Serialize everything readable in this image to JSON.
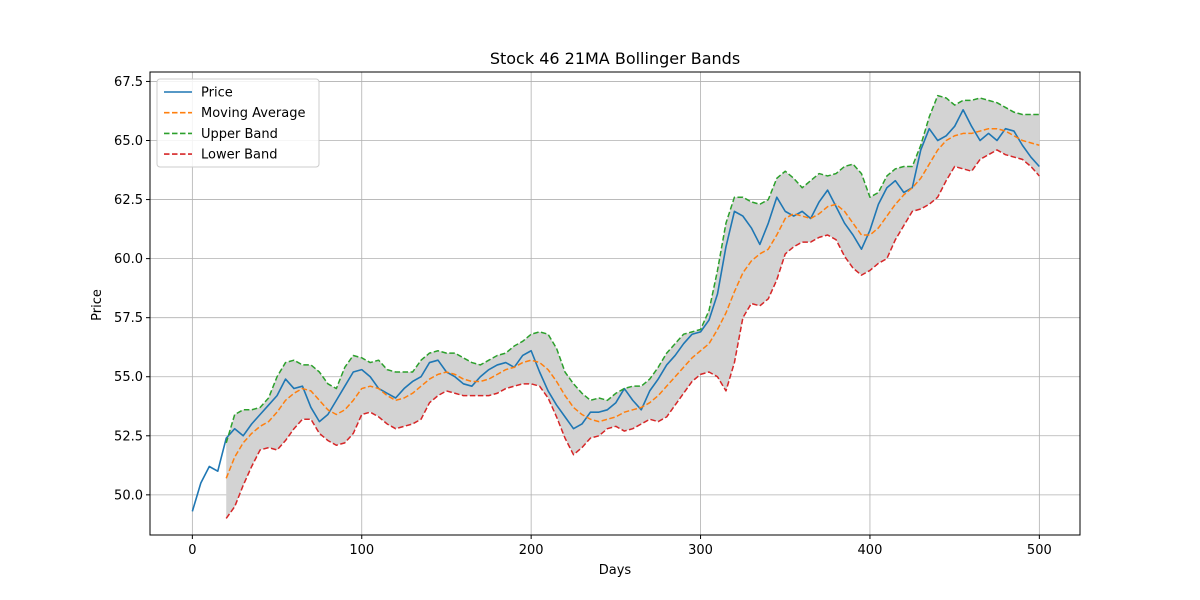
{
  "chart_data": {
    "type": "line",
    "title": "Stock 46 21MA Bollinger Bands",
    "xlabel": "Days",
    "ylabel": "Price",
    "xlim": [
      -25,
      524
    ],
    "ylim": [
      48.3,
      67.9
    ],
    "xticks": [
      0,
      100,
      200,
      300,
      400,
      500
    ],
    "yticks": [
      50.0,
      52.5,
      55.0,
      57.5,
      60.0,
      62.5,
      65.0,
      67.5
    ],
    "xtick_labels": [
      "0",
      "100",
      "200",
      "300",
      "400",
      "500"
    ],
    "ytick_labels": [
      "50.0",
      "52.5",
      "55.0",
      "57.5",
      "60.0",
      "62.5",
      "65.0",
      "67.5"
    ],
    "grid": true,
    "legend_position": "upper-left",
    "band_fill_color": "#d3d3d3",
    "series": [
      {
        "name": "Price",
        "color": "#1f77b4",
        "style": "solid",
        "x": [
          0,
          5,
          10,
          15,
          20,
          25,
          30,
          35,
          40,
          45,
          50,
          55,
          60,
          65,
          70,
          75,
          80,
          85,
          90,
          95,
          100,
          105,
          110,
          115,
          120,
          125,
          130,
          135,
          140,
          145,
          150,
          155,
          160,
          165,
          170,
          175,
          180,
          185,
          190,
          195,
          200,
          205,
          210,
          215,
          220,
          225,
          230,
          235,
          240,
          245,
          250,
          255,
          260,
          265,
          270,
          275,
          280,
          285,
          290,
          295,
          300,
          305,
          310,
          315,
          320,
          325,
          330,
          335,
          340,
          345,
          350,
          355,
          360,
          365,
          370,
          375,
          380,
          385,
          390,
          395,
          400,
          405,
          410,
          415,
          420,
          425,
          430,
          435,
          440,
          445,
          450,
          455,
          460,
          465,
          470,
          475,
          480,
          485,
          490,
          495,
          500
        ],
        "values": [
          49.3,
          50.5,
          51.2,
          51.0,
          52.4,
          52.8,
          52.5,
          53.0,
          53.4,
          53.8,
          54.2,
          54.9,
          54.5,
          54.6,
          53.7,
          53.1,
          53.4,
          54.0,
          54.6,
          55.2,
          55.3,
          55.0,
          54.5,
          54.3,
          54.1,
          54.5,
          54.8,
          55.0,
          55.6,
          55.7,
          55.2,
          55.0,
          54.7,
          54.6,
          55.0,
          55.3,
          55.5,
          55.6,
          55.4,
          55.9,
          56.1,
          55.2,
          54.4,
          53.8,
          53.3,
          52.8,
          53.0,
          53.5,
          53.5,
          53.6,
          53.9,
          54.5,
          54.0,
          53.6,
          54.4,
          54.9,
          55.5,
          55.9,
          56.4,
          56.8,
          56.9,
          57.4,
          58.5,
          60.5,
          62.0,
          61.8,
          61.3,
          60.6,
          61.5,
          62.6,
          62.0,
          61.8,
          62.0,
          61.7,
          62.4,
          62.9,
          62.2,
          61.5,
          61.0,
          60.4,
          61.2,
          62.3,
          63.0,
          63.3,
          62.8,
          63.0,
          64.6,
          65.5,
          65.0,
          65.2,
          65.6,
          66.3,
          65.6,
          65.0,
          65.3,
          65.0,
          65.5,
          65.4,
          64.8,
          64.3,
          63.9
        ]
      },
      {
        "name": "Moving Average",
        "color": "#ff7f0e",
        "style": "dashed",
        "x": [
          20,
          25,
          30,
          35,
          40,
          45,
          50,
          55,
          60,
          65,
          70,
          75,
          80,
          85,
          90,
          95,
          100,
          105,
          110,
          115,
          120,
          125,
          130,
          135,
          140,
          145,
          150,
          155,
          160,
          165,
          170,
          175,
          180,
          185,
          190,
          195,
          200,
          205,
          210,
          215,
          220,
          225,
          230,
          235,
          240,
          245,
          250,
          255,
          260,
          265,
          270,
          275,
          280,
          285,
          290,
          295,
          300,
          305,
          310,
          315,
          320,
          325,
          330,
          335,
          340,
          345,
          350,
          355,
          360,
          365,
          370,
          375,
          380,
          385,
          390,
          395,
          400,
          405,
          410,
          415,
          420,
          425,
          430,
          435,
          440,
          445,
          450,
          455,
          460,
          465,
          470,
          475,
          480,
          485,
          490,
          495,
          500
        ],
        "values": [
          50.7,
          51.6,
          52.2,
          52.6,
          52.9,
          53.1,
          53.5,
          54.0,
          54.3,
          54.5,
          54.4,
          54.0,
          53.6,
          53.4,
          53.6,
          54.0,
          54.5,
          54.6,
          54.5,
          54.2,
          54.0,
          54.1,
          54.3,
          54.6,
          54.9,
          55.1,
          55.2,
          55.1,
          54.9,
          54.8,
          54.8,
          54.9,
          55.1,
          55.3,
          55.4,
          55.6,
          55.7,
          55.6,
          55.3,
          54.8,
          54.2,
          53.7,
          53.4,
          53.2,
          53.1,
          53.2,
          53.3,
          53.5,
          53.6,
          53.7,
          53.9,
          54.2,
          54.6,
          55.0,
          55.4,
          55.8,
          56.1,
          56.4,
          57.0,
          57.7,
          58.6,
          59.4,
          59.9,
          60.2,
          60.4,
          61.0,
          61.7,
          61.9,
          61.8,
          61.7,
          61.9,
          62.2,
          62.3,
          62.0,
          61.5,
          61.0,
          61.0,
          61.3,
          61.8,
          62.3,
          62.7,
          63.0,
          63.4,
          64.0,
          64.6,
          65.0,
          65.2,
          65.3,
          65.3,
          65.4,
          65.5,
          65.5,
          65.4,
          65.2,
          65.0,
          64.9,
          64.8
        ]
      },
      {
        "name": "Upper Band",
        "color": "#2ca02c",
        "style": "dashed",
        "x": [
          20,
          25,
          30,
          35,
          40,
          45,
          50,
          55,
          60,
          65,
          70,
          75,
          80,
          85,
          90,
          95,
          100,
          105,
          110,
          115,
          120,
          125,
          130,
          135,
          140,
          145,
          150,
          155,
          160,
          165,
          170,
          175,
          180,
          185,
          190,
          195,
          200,
          205,
          210,
          215,
          220,
          225,
          230,
          235,
          240,
          245,
          250,
          255,
          260,
          265,
          270,
          275,
          280,
          285,
          290,
          295,
          300,
          305,
          310,
          315,
          320,
          325,
          330,
          335,
          340,
          345,
          350,
          355,
          360,
          365,
          370,
          375,
          380,
          385,
          390,
          395,
          400,
          405,
          410,
          415,
          420,
          425,
          430,
          435,
          440,
          445,
          450,
          455,
          460,
          465,
          470,
          475,
          480,
          485,
          490,
          495,
          500
        ],
        "values": [
          52.2,
          53.4,
          53.6,
          53.6,
          53.7,
          54.1,
          55.0,
          55.6,
          55.7,
          55.5,
          55.5,
          55.2,
          54.7,
          54.5,
          55.4,
          55.9,
          55.8,
          55.6,
          55.7,
          55.3,
          55.2,
          55.2,
          55.2,
          55.7,
          56.0,
          56.1,
          56.0,
          56.0,
          55.8,
          55.6,
          55.5,
          55.7,
          55.9,
          56.0,
          56.3,
          56.5,
          56.8,
          56.9,
          56.8,
          56.2,
          55.2,
          54.7,
          54.3,
          54.0,
          54.1,
          54.0,
          54.3,
          54.5,
          54.6,
          54.6,
          54.9,
          55.4,
          56.0,
          56.4,
          56.8,
          56.9,
          57.0,
          57.8,
          59.5,
          61.5,
          62.6,
          62.6,
          62.4,
          62.3,
          62.5,
          63.4,
          63.7,
          63.4,
          63.0,
          63.3,
          63.6,
          63.5,
          63.6,
          63.9,
          64.0,
          63.6,
          62.6,
          62.8,
          63.5,
          63.8,
          63.9,
          63.9,
          64.8,
          66.0,
          66.9,
          66.8,
          66.5,
          66.7,
          66.7,
          66.8,
          66.7,
          66.6,
          66.4,
          66.2,
          66.1,
          66.1,
          66.1
        ]
      },
      {
        "name": "Lower Band",
        "color": "#d62728",
        "style": "dashed",
        "x": [
          20,
          25,
          30,
          35,
          40,
          45,
          50,
          55,
          60,
          65,
          70,
          75,
          80,
          85,
          90,
          95,
          100,
          105,
          110,
          115,
          120,
          125,
          130,
          135,
          140,
          145,
          150,
          155,
          160,
          165,
          170,
          175,
          180,
          185,
          190,
          195,
          200,
          205,
          210,
          215,
          220,
          225,
          230,
          235,
          240,
          245,
          250,
          255,
          260,
          265,
          270,
          275,
          280,
          285,
          290,
          295,
          300,
          305,
          310,
          315,
          320,
          325,
          330,
          335,
          340,
          345,
          350,
          355,
          360,
          365,
          370,
          375,
          380,
          385,
          390,
          395,
          400,
          405,
          410,
          415,
          420,
          425,
          430,
          435,
          440,
          445,
          450,
          455,
          460,
          465,
          470,
          475,
          480,
          485,
          490,
          495,
          500
        ],
        "values": [
          49.0,
          49.5,
          50.4,
          51.2,
          51.9,
          52.0,
          51.9,
          52.3,
          52.8,
          53.2,
          53.2,
          52.6,
          52.3,
          52.1,
          52.2,
          52.6,
          53.4,
          53.5,
          53.3,
          53.0,
          52.8,
          52.9,
          53.0,
          53.2,
          53.9,
          54.2,
          54.4,
          54.3,
          54.2,
          54.2,
          54.2,
          54.2,
          54.3,
          54.5,
          54.6,
          54.7,
          54.7,
          54.6,
          54.1,
          53.3,
          52.4,
          51.7,
          52.0,
          52.4,
          52.5,
          52.8,
          52.9,
          52.7,
          52.8,
          53.0,
          53.2,
          53.1,
          53.3,
          53.8,
          54.3,
          54.8,
          55.1,
          55.2,
          55.0,
          54.4,
          55.6,
          57.5,
          58.1,
          58.0,
          58.3,
          59.1,
          60.2,
          60.5,
          60.7,
          60.7,
          60.9,
          61.0,
          60.8,
          60.1,
          59.6,
          59.3,
          59.5,
          59.8,
          60.0,
          60.8,
          61.4,
          62.0,
          62.1,
          62.3,
          62.6,
          63.3,
          63.9,
          63.8,
          63.7,
          64.2,
          64.4,
          64.6,
          64.4,
          64.3,
          64.2,
          63.9,
          63.5
        ]
      }
    ]
  }
}
